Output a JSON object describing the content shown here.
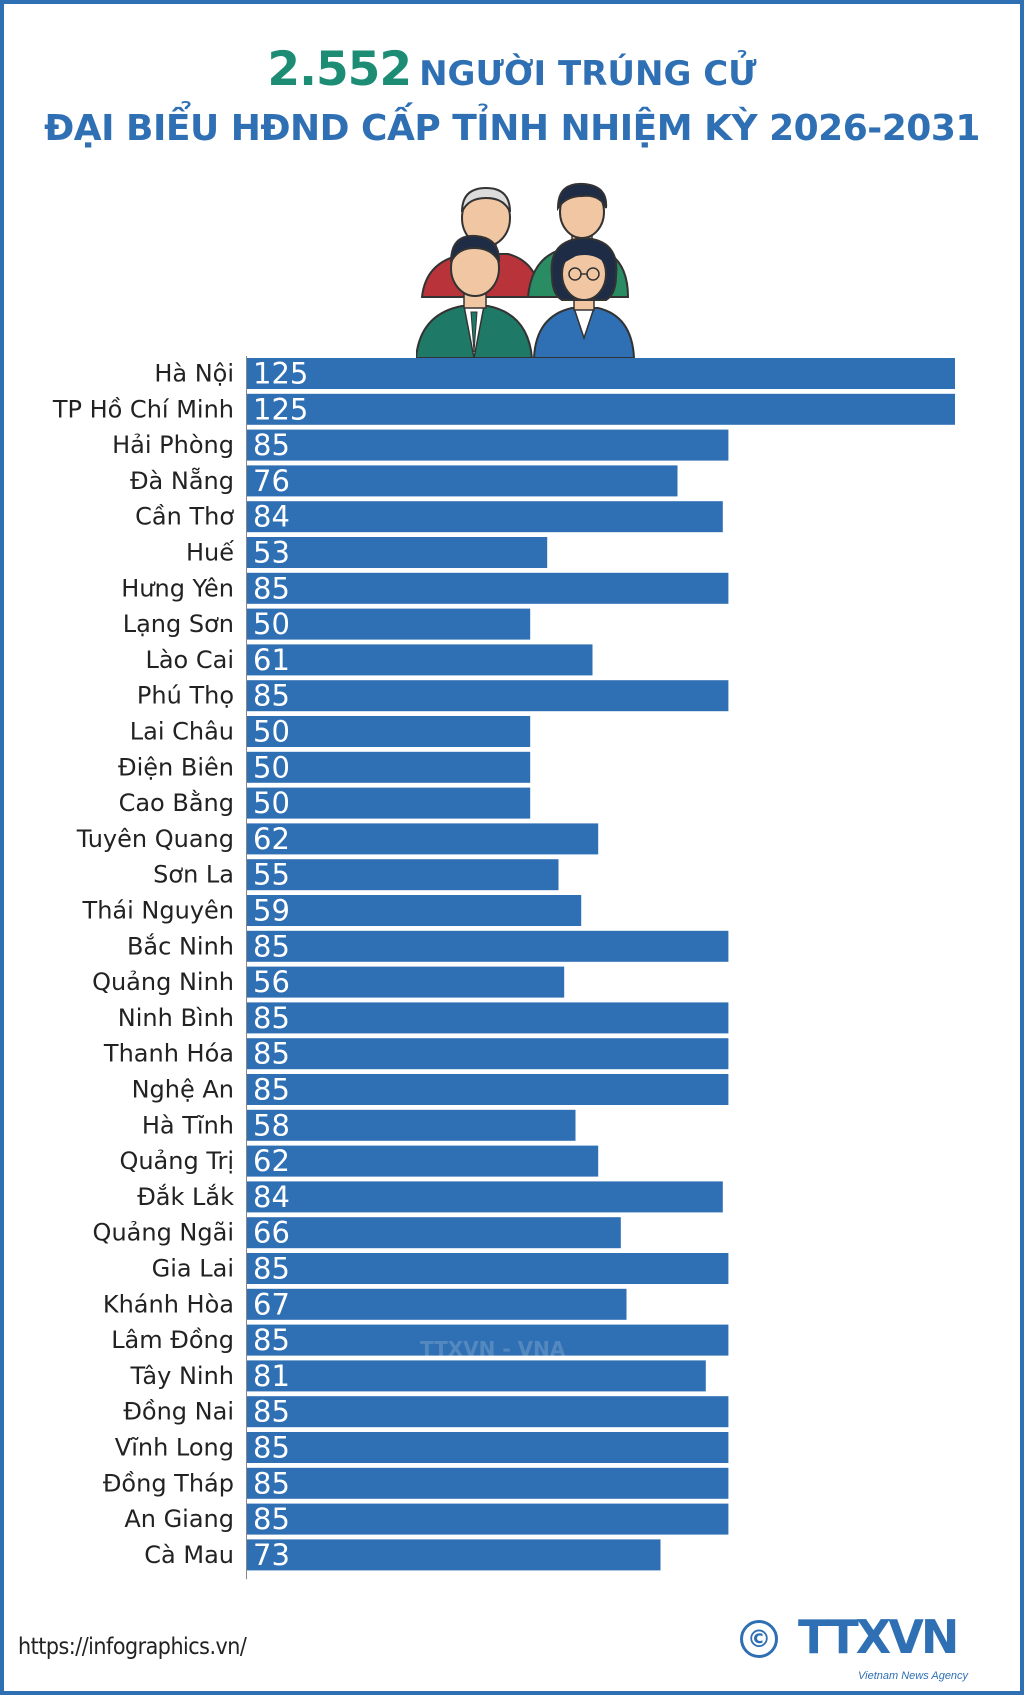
{
  "title": {
    "count": "2.552",
    "line1_rest": "NGƯỜI TRÚNG CỬ",
    "line2": "ĐẠI BIỂU HĐND CẤP TỈNH NHIỆM KỲ 2026-2031"
  },
  "colors": {
    "bar": "#2f6fb3",
    "title_count": "#1c8c75",
    "title_text": "#2f6fb3"
  },
  "illustration": "group-of-four-delegates-illustration",
  "chart_data": {
    "type": "bar",
    "orientation": "horizontal",
    "categories": [
      "Hà Nội",
      "TP Hồ Chí Minh",
      "Hải Phòng",
      "Đà Nẵng",
      "Cần Thơ",
      "Huế",
      "Hưng Yên",
      "Lạng Sơn",
      "Lào Cai",
      "Phú Thọ",
      "Lai Châu",
      "Điện Biên",
      "Cao Bằng",
      "Tuyên Quang",
      "Sơn La",
      "Thái Nguyên",
      "Bắc Ninh",
      "Quảng Ninh",
      "Ninh Bình",
      "Thanh Hóa",
      "Nghệ An",
      "Hà Tĩnh",
      "Quảng Trị",
      "Đắk Lắk",
      "Quảng Ngãi",
      "Gia Lai",
      "Khánh Hòa",
      "Lâm Đồng",
      "Tây Ninh",
      "Đồng Nai",
      "Vĩnh Long",
      "Đồng Tháp",
      "An Giang",
      "Cà Mau"
    ],
    "values": [
      125,
      125,
      85,
      76,
      84,
      53,
      85,
      50,
      61,
      85,
      50,
      50,
      50,
      62,
      55,
      59,
      85,
      56,
      85,
      85,
      85,
      58,
      62,
      84,
      66,
      85,
      67,
      85,
      81,
      85,
      85,
      85,
      85,
      73
    ],
    "xlim": [
      0,
      125
    ],
    "grid": false,
    "data_labels": true
  },
  "footer": {
    "url": "https://infographics.vn/",
    "copyright_symbol": "©",
    "logo_text": "TTXVN",
    "logo_subtext": "Vietnam News Agency",
    "watermark": "TTXVN - VNA"
  }
}
